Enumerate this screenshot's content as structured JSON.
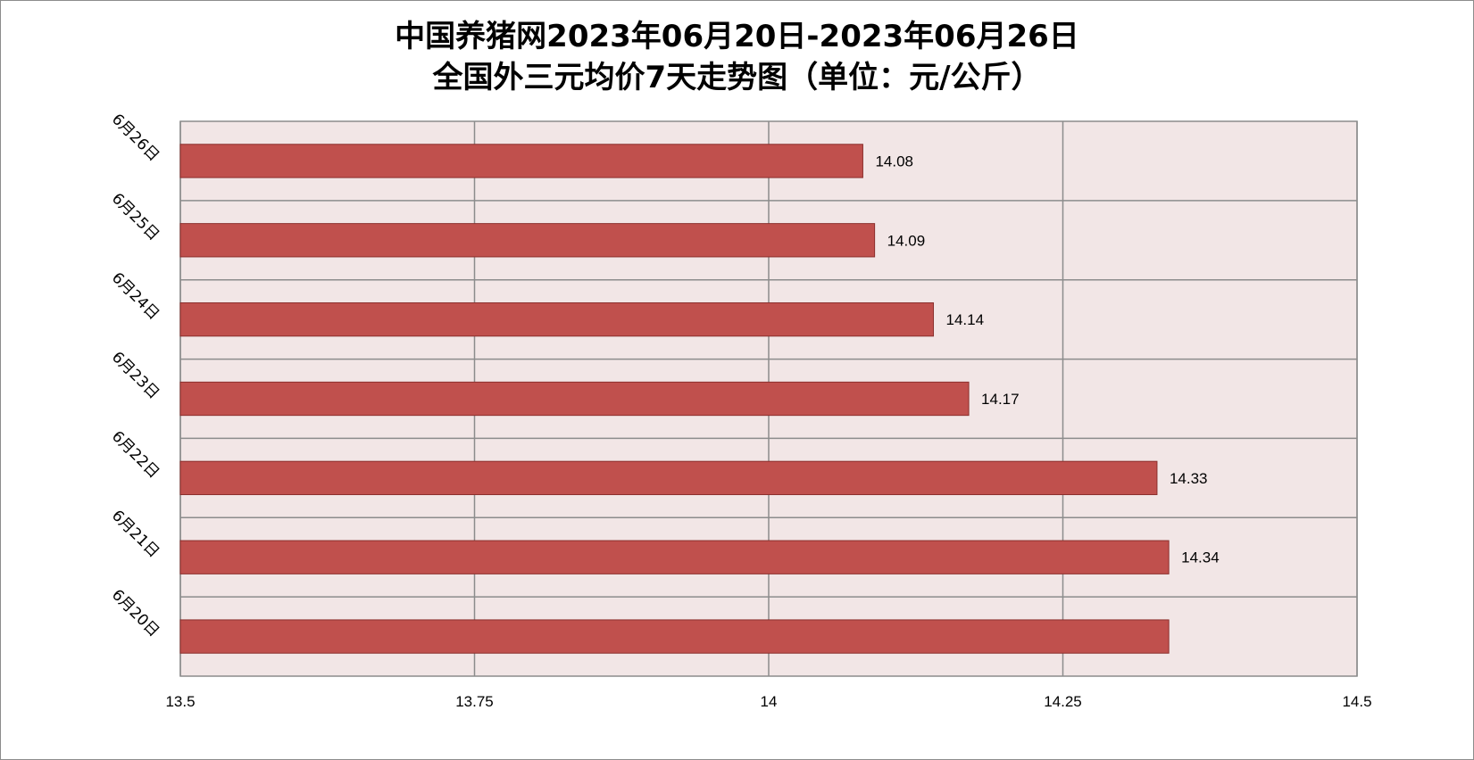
{
  "chart_data": {
    "type": "bar",
    "orientation": "horizontal",
    "title_line1": "中国养猪网2023年06月20日-2023年06月26日",
    "title_line2": "全国外三元均价7天走势图（单位：元/公斤）",
    "categories": [
      "6月26日",
      "6月25日",
      "6月24日",
      "6月23日",
      "6月22日",
      "6月21日",
      "6月20日"
    ],
    "values": [
      14.08,
      14.09,
      14.14,
      14.17,
      14.33,
      14.34,
      14.34
    ],
    "data_labels": [
      "14.08",
      "14.09",
      "14.14",
      "14.17",
      "14.33",
      "14.34",
      ""
    ],
    "xlim": [
      13.5,
      14.5
    ],
    "xticks": [
      13.5,
      13.75,
      14,
      14.25,
      14.5
    ],
    "xtick_labels": [
      "13.5",
      "13.75",
      "14",
      "14.25",
      "14.5"
    ],
    "grid": true,
    "legend": "none",
    "colors": {
      "bar_fill": "#c0504d",
      "bar_stroke": "#8b2f2d",
      "plot_background": "#f2e6e6",
      "grid": "#8c8c8c"
    }
  }
}
